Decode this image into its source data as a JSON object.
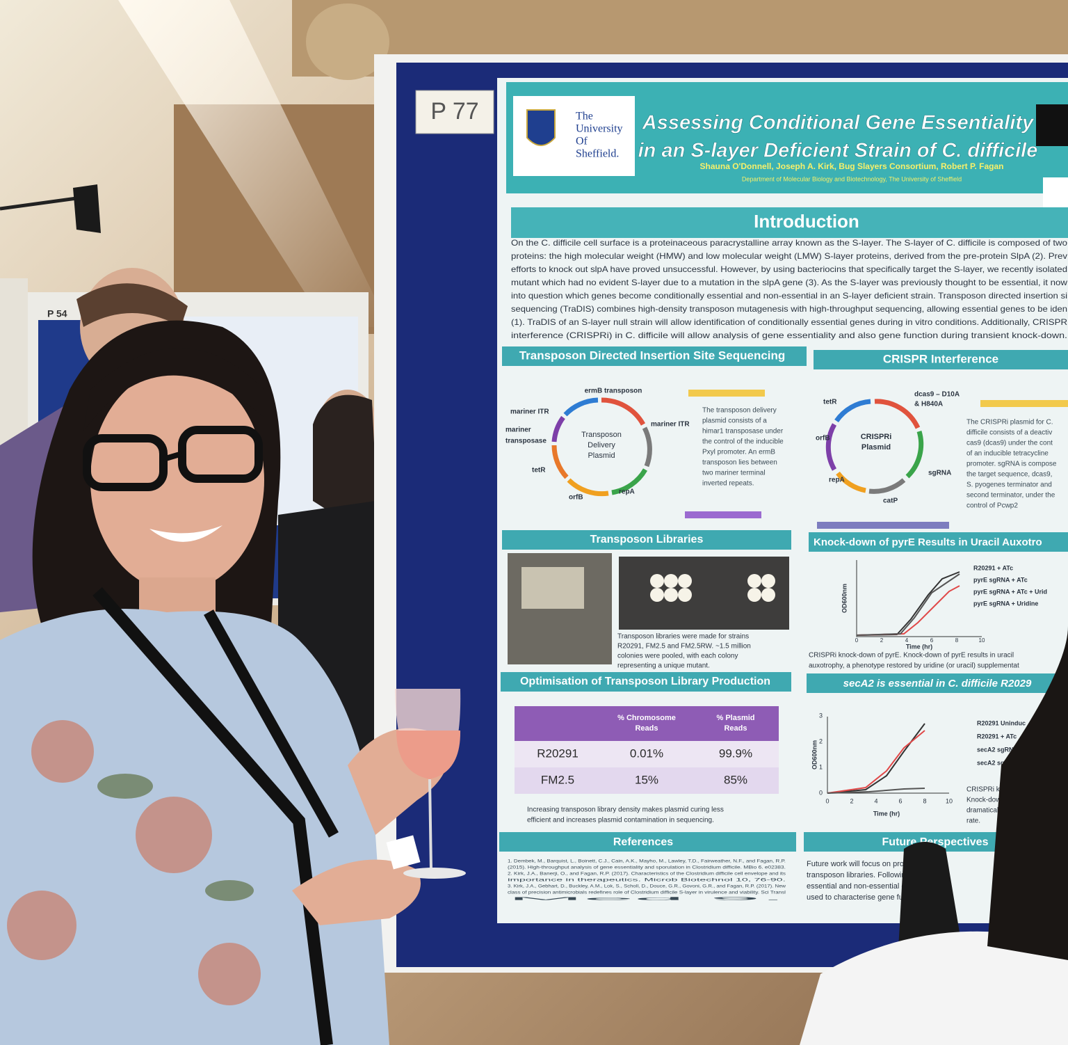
{
  "board_number": "P 77",
  "neighbor_board_number": "P 54",
  "poster": {
    "title_lines": [
      "Assessing Conditional Gene Essentiality",
      "in an S-layer Deficient Strain of C. difficile"
    ],
    "authors": "Shauna O'Donnell, Joseph A. Kirk, Bug Slayers Consortium, Robert P. Fagan",
    "affiliation": "Department of Molecular Biology and Biotechnology, The University of Sheffield",
    "university_lines": [
      "The",
      "University",
      "Of",
      "Sheffield."
    ],
    "introduction": {
      "heading": "Introduction",
      "lines": [
        "On the C. difficile cell surface is a proteinaceous paracrystalline array known as the S-layer. The S-layer of C. difficile is composed of two",
        "proteins: the high molecular weight (HMW) and low molecular weight (LMW) S-layer proteins, derived from the pre-protein SlpA (2). Prev",
        "efforts to knock out slpA have proved unsuccessful. However, by using bacteriocins that specifically target the S-layer, we recently isolated",
        "mutant which had no evident S-layer due to a mutation in the slpA gene (3). As the S-layer was previously thought to be essential, it now",
        "into question which genes become conditionally essential and non-essential in an S-layer deficient strain. Transposon directed insertion si",
        "sequencing (TraDIS) combines high-density transposon mutagenesis with high-throughput sequencing, allowing essential genes to be iden",
        "(1). TraDIS of an S-layer null strain will allow identification of conditionally essential genes during in vitro conditions. Additionally, CRISPR",
        "interference (CRISPRi) in C. difficile will allow analysis of gene essentiality and also gene function during transient knock-down."
      ]
    },
    "tradis": {
      "heading": "Transposon Directed Insertion Site Sequencing",
      "plasmid_lines": [
        "Transposon",
        "Delivery",
        "Plasmid"
      ],
      "genes": [
        "ermB transposon",
        "mariner ITR",
        "mariner ITR",
        "mariner",
        "transposase",
        "tetR",
        "orfB",
        "repA"
      ],
      "description": [
        "The transposon delivery",
        "plasmid consists of a",
        "himar1 transposase under",
        "the control of the inducible",
        "Pxyl promoter. An ermB",
        "transposon lies between",
        "two mariner terminal",
        "inverted repeats."
      ]
    },
    "crispr": {
      "heading": "CRISPR Interference",
      "plasmid_lines": [
        "CRISPRi",
        "Plasmid"
      ],
      "genes": [
        "dcas9 – D10A",
        "& H840A",
        "tetR",
        "orfB",
        "repA",
        "catP",
        "sgRNA"
      ],
      "description": [
        "The CRISPRi plasmid for C.",
        "difficile consists of a deactiv",
        "cas9 (dcas9) under the cont",
        "of an inducible tetracycline",
        "promoter. sgRNA is compose",
        "the target sequence, dcas9,",
        "S. pyogenes terminator and",
        "second terminator, under the",
        "control of Pcwp2"
      ]
    },
    "libraries": {
      "heading": "Transposon Libraries",
      "caption": [
        "Transposon libraries were made for strains",
        "R20291, FM2.5 and FM2.5RW. ~1.5 million",
        "colonies were pooled, with each colony",
        "representing a unique mutant."
      ]
    },
    "knockdown": {
      "heading": "Knock-down of pyrE Results in Uracil Auxotro",
      "legend": [
        "R20291 + ATc",
        "pyrE sgRNA + ATc",
        "pyrE sgRNA + ATc + Urid",
        "pyrE sgRNA + Uridine"
      ],
      "y_label": "OD600nm",
      "x_label": "Time (hr)",
      "xticks": [
        0,
        2,
        4,
        6,
        8,
        10
      ],
      "caption": [
        "CRISPRi knock-down of pyrE. Knock-down of pyrE results in uracil",
        "auxotrophy, a phenotype restored by uridine (or uracil) supplementat"
      ]
    },
    "optimisation": {
      "heading": "Optimisation of Transposon Library Production",
      "columns": [
        "% Chromosome Reads",
        "% Plasmid Reads"
      ],
      "rows": [
        [
          "R20291",
          "0.01%",
          "99.9%"
        ],
        [
          "FM2.5",
          "15%",
          "85%"
        ]
      ],
      "caption": [
        "Increasing transposon library density makes plasmid curing less",
        "efficient and increases plasmid contamination in sequencing."
      ]
    },
    "seca2": {
      "heading": "secA2 is essential in C. difficile R2029",
      "legend": [
        "R20291 Uninduc",
        "R20291 + ATc",
        "secA2 sgRNA",
        "secA2 sgRNA"
      ],
      "y_label": "OD600nm",
      "x_label": "Time (hr)",
      "xticks": [
        0,
        2,
        4,
        6,
        8,
        10
      ],
      "yticks": [
        0,
        1,
        2,
        3
      ],
      "caption": [
        "CRISPRi knock-",
        "Knock-down o",
        "dramatically",
        "rate."
      ]
    },
    "references": {
      "heading": "References",
      "lines": [
        "1. Dembek, M., Barquist, L., Boinett, C.J., Cain, A.K., Mayho, M., Lawley, T.D., Fairweather, N.F., and Fagan, R.P.",
        "(2015). High-throughput analysis of gene essentiality and sporulation in Clostridium difficile. MBio 6. e02383.",
        "2. Kirk, J.A., Banerji, O., and Fagan, R.P. (2017). Characteristics of the Clostridium difficile cell envelope and its",
        "importance in therapeutics. Microb Biotechnol 10, 76-90.",
        "3. Kirk, J.A., Gebhart, D., Buckley, A.M., Lok, S., Scholl, D., Douce, G.R., Govoni, G.R., and Fagan, R.P. (2017). New",
        "class of precision antimicrobials redefines role of Clostridium difficile S-layer in virulence and viability. Sci Transl",
        "Med 9."
      ]
    },
    "future": {
      "heading": "Future Perspectives",
      "lines": [
        "Future work will focus on proce",
        "transposon libraries. Following",
        "essential and non-essential gen",
        "used to characterise gene func"
      ]
    }
  }
}
